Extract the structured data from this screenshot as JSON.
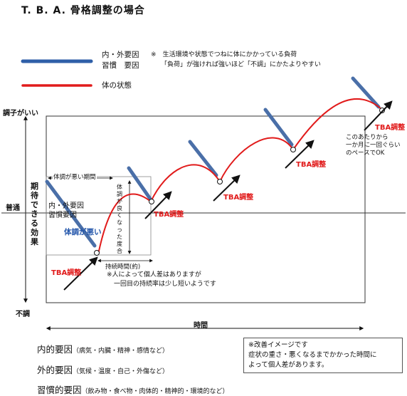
{
  "title": "T. B. A. 骨格調整の場合",
  "legend": {
    "blue_line_label_1": "内・外要因",
    "blue_line_label_2": "習慣　要因",
    "note_mark": "※",
    "note_line1": "生活環境や状態でつねに体にかかっている負荷",
    "note_line2": "「負荷」が強ければ強いほど「不調」にかたよりやすい",
    "red_line_label": "体の状態",
    "blue_color": "#2f5fa8",
    "red_color": "#e11b1b"
  },
  "axes": {
    "y_top": "調子がいい",
    "y_mid": "普通",
    "y_bottom": "不調",
    "y_label": "期待できる効果",
    "x_label": "時間"
  },
  "annotations": {
    "tba_label": "TBA調整",
    "period_bad": "体調が悪い期間",
    "factor_1": "内・外要因",
    "factor_2": "習慣要因",
    "bad_condition": "体調が悪い",
    "good_degree": "体調が良くなった度合",
    "duration": "持続時間(約)",
    "duration_note_1": "※人によって個人差はありますが",
    "duration_note_2": "一回目の持続率は少し短いようです",
    "maintenance_1": "このあたりから",
    "maintenance_2": "一か月に一回ぐらい",
    "maintenance_3": "のペースでOK"
  },
  "bottom": {
    "internal_label": "内的要因",
    "internal_detail": "（病気・内臓・精神・感情など）",
    "external_label": "外的要因",
    "external_detail": "（気候・温度・自己・外傷など）",
    "habit_label": "習慣的要因",
    "habit_detail": "（飲み物・食べ物・肉体的・精神的・環境的など）"
  },
  "note_box": {
    "line1": "※改善イメージです",
    "line2": "症状の重さ・悪くなるまでかかった時間に",
    "line3": "よって個人差があります。"
  }
}
